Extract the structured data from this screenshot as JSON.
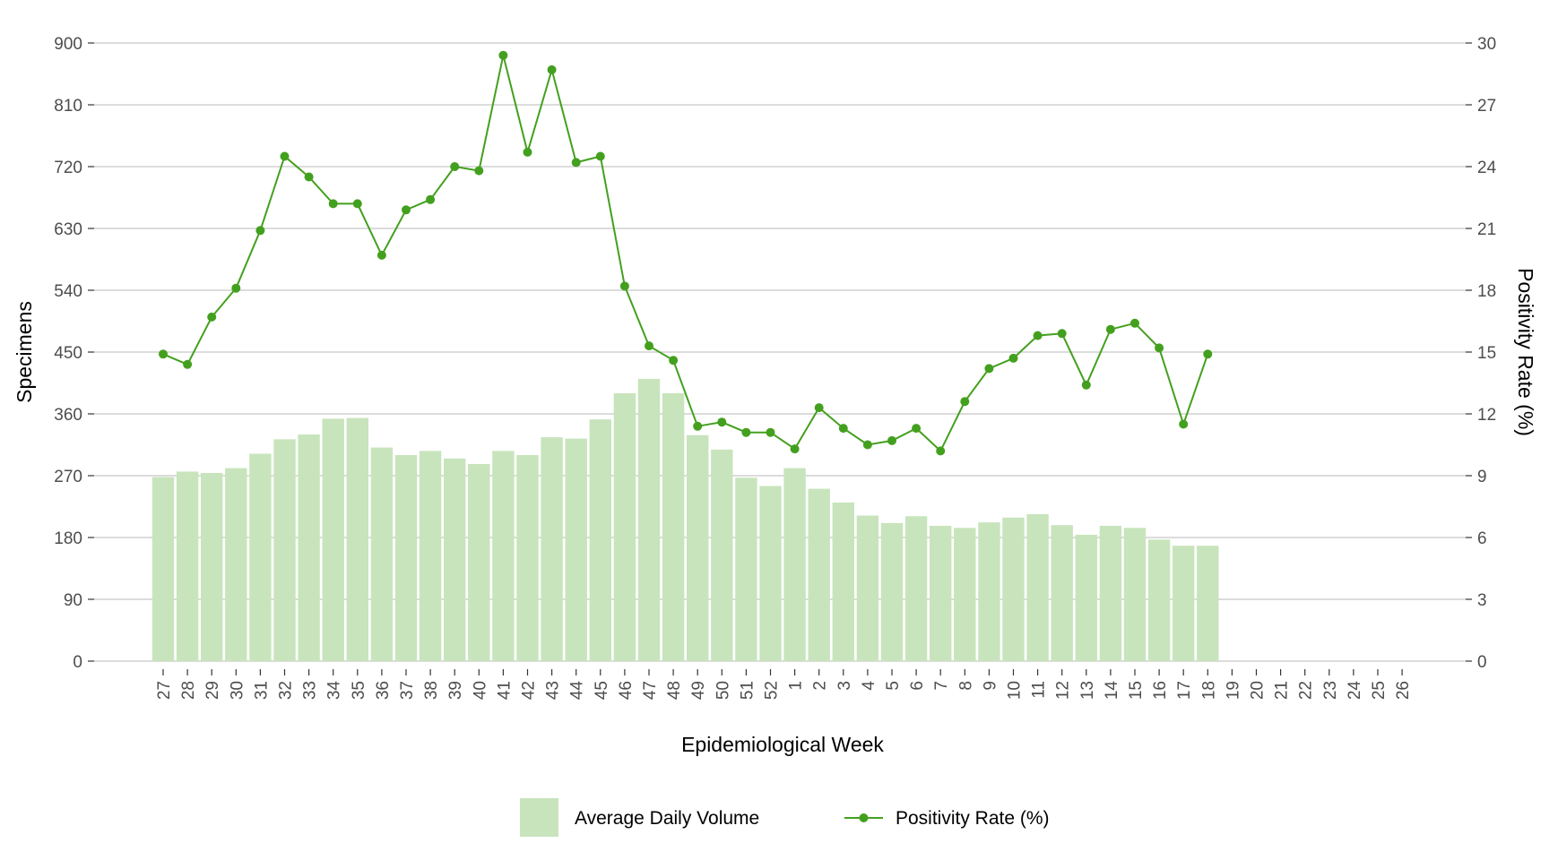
{
  "chart_data": {
    "type": "bar",
    "title": "",
    "xlabel": "Epidemiological Week",
    "ylabel": "Specimens",
    "y2label": "Positivity Rate (%)",
    "ylim": [
      0,
      900
    ],
    "y2lim": [
      0,
      30
    ],
    "yticks": [
      0,
      90,
      180,
      270,
      360,
      450,
      540,
      630,
      720,
      810,
      900
    ],
    "y2ticks": [
      0,
      3,
      6,
      9,
      12,
      15,
      18,
      21,
      24,
      27,
      30
    ],
    "grid": true,
    "legend_position": "bottom",
    "categories": [
      "27",
      "28",
      "29",
      "30",
      "31",
      "32",
      "33",
      "34",
      "35",
      "36",
      "37",
      "38",
      "39",
      "40",
      "41",
      "42",
      "43",
      "44",
      "45",
      "46",
      "47",
      "48",
      "49",
      "50",
      "51",
      "52",
      "1",
      "2",
      "3",
      "4",
      "5",
      "6",
      "7",
      "8",
      "9",
      "10",
      "11",
      "12",
      "13",
      "14",
      "15",
      "16",
      "17",
      "18",
      "19",
      "20",
      "21",
      "22",
      "23",
      "24",
      "25",
      "26"
    ],
    "series": [
      {
        "name": "Average Daily Volume",
        "kind": "bar",
        "axis": "left",
        "color": "#c8e4bc",
        "values": [
          268,
          276,
          274,
          281,
          302,
          323,
          330,
          353,
          354,
          311,
          300,
          306,
          295,
          287,
          306,
          300,
          326,
          324,
          352,
          390,
          411,
          390,
          329,
          308,
          267,
          255,
          281,
          251,
          231,
          212,
          201,
          211,
          197,
          194,
          202,
          209,
          214,
          198,
          184,
          197,
          194,
          177,
          168,
          168,
          null,
          null,
          null,
          null,
          null,
          null,
          null,
          null
        ]
      },
      {
        "name": "Positivity Rate (%)",
        "kind": "line",
        "axis": "right",
        "color": "#43a01e",
        "values": [
          14.9,
          14.4,
          16.7,
          18.1,
          20.9,
          24.5,
          23.5,
          22.2,
          22.2,
          19.7,
          21.9,
          22.4,
          24.0,
          23.8,
          29.4,
          24.7,
          28.7,
          24.2,
          24.5,
          18.2,
          15.3,
          14.6,
          11.4,
          11.6,
          11.1,
          11.1,
          10.3,
          12.3,
          11.3,
          10.5,
          10.7,
          11.3,
          10.2,
          12.6,
          14.2,
          14.7,
          15.8,
          15.9,
          13.4,
          16.1,
          16.4,
          15.2,
          11.5,
          14.9,
          null,
          null,
          null,
          null,
          null,
          null,
          null,
          null
        ]
      }
    ]
  }
}
